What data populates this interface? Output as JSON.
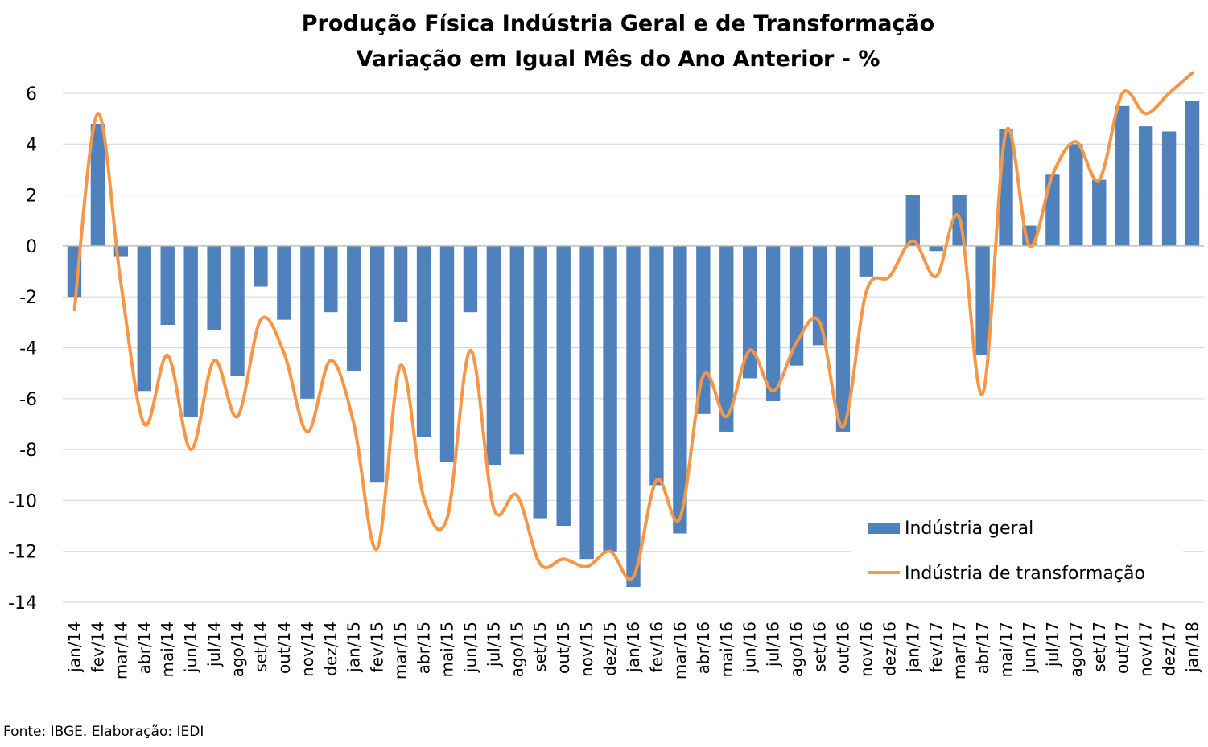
{
  "chart_data": {
    "type": "bar",
    "title": [
      "Produção Física Indústria Geral e de Transformação",
      "Variação em Igual Mês do Ano Anterior - %"
    ],
    "categories": [
      "jan/14",
      "fev/14",
      "mar/14",
      "abr/14",
      "mai/14",
      "jun/14",
      "jul/14",
      "ago/14",
      "set/14",
      "out/14",
      "nov/14",
      "dez/14",
      "jan/15",
      "fev/15",
      "mar/15",
      "abr/15",
      "mai/15",
      "jun/15",
      "jul/15",
      "ago/15",
      "set/15",
      "out/15",
      "nov/15",
      "dez/15",
      "jan/16",
      "fev/16",
      "mar/16",
      "abr/16",
      "mai/16",
      "jun/16",
      "jul/16",
      "ago/16",
      "set/16",
      "out/16",
      "nov/16",
      "dez/16",
      "jan/17",
      "fev/17",
      "mar/17",
      "abr/17",
      "mai/17",
      "jun/17",
      "jul/17",
      "ago/17",
      "set/17",
      "out/17",
      "nov/17",
      "dez/17",
      "jan/18"
    ],
    "series": [
      {
        "name": "Indústria geral",
        "type": "bar",
        "color": "#4f81bd",
        "values": [
          -2.0,
          4.8,
          -0.4,
          -5.7,
          -3.1,
          -6.7,
          -3.3,
          -5.1,
          -1.6,
          -2.9,
          -6.0,
          -2.6,
          -4.9,
          -9.3,
          -3.0,
          -7.5,
          -8.5,
          -2.6,
          -8.6,
          -8.2,
          -10.7,
          -11.0,
          -12.3,
          -12.0,
          -13.4,
          -9.4,
          -11.3,
          -6.6,
          -7.3,
          -5.2,
          -6.1,
          -4.7,
          -3.9,
          -7.3,
          -1.2,
          0.0,
          2.0,
          -0.2,
          2.0,
          -4.3,
          4.6,
          0.8,
          2.8,
          4.0,
          2.6,
          5.5,
          4.7,
          4.5,
          5.7
        ]
      },
      {
        "name": "Indústria de transformação",
        "type": "line",
        "color": "#f79646",
        "values": [
          -2.5,
          5.2,
          -1.5,
          -7.0,
          -4.3,
          -8.0,
          -4.5,
          -6.7,
          -2.9,
          -4.2,
          -7.3,
          -4.5,
          -7.0,
          -11.9,
          -4.7,
          -9.9,
          -10.7,
          -4.1,
          -10.3,
          -9.8,
          -12.5,
          -12.3,
          -12.6,
          -12.0,
          -13.0,
          -9.2,
          -10.7,
          -5.1,
          -6.7,
          -4.1,
          -5.7,
          -3.8,
          -3.0,
          -7.1,
          -1.8,
          -1.2,
          0.2,
          -1.2,
          1.1,
          -5.8,
          4.5,
          0.0,
          2.8,
          4.1,
          2.6,
          6.0,
          5.2,
          6.0,
          6.8
        ]
      }
    ],
    "ylim": [
      -14,
      6
    ],
    "yticks": [
      "6",
      "4",
      "2",
      "0",
      "-2",
      "-4",
      "-6",
      "-8",
      "-10",
      "-12",
      "-14"
    ],
    "xlabel": "",
    "ylabel": "",
    "grid": true,
    "legend": {
      "position": "bottom-right"
    },
    "source": "Fonte: IBGE. Elaboração: IEDI"
  }
}
